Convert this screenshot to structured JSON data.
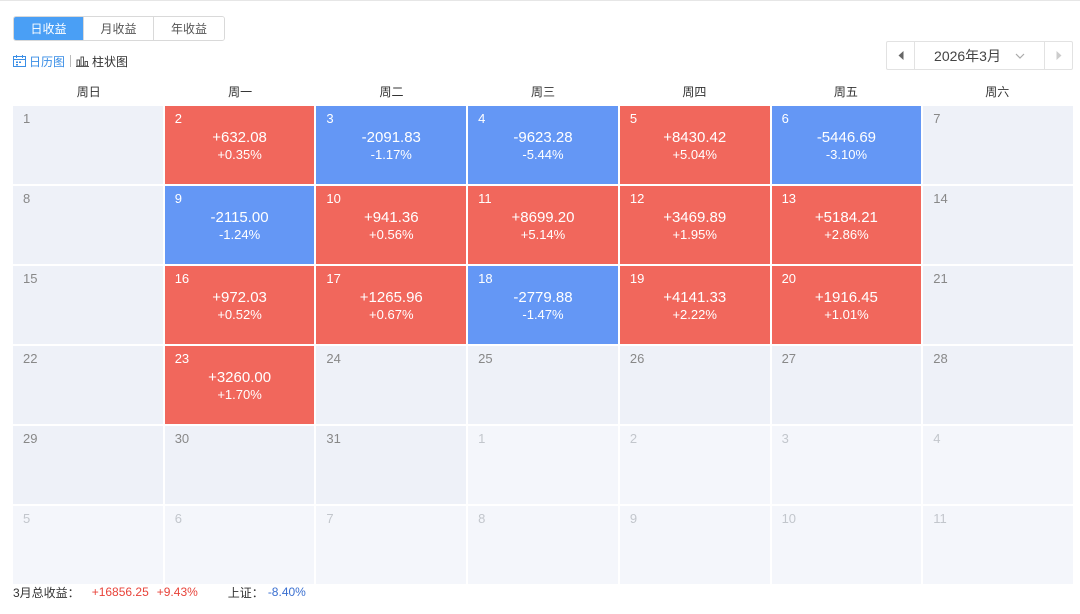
{
  "tabs": [
    {
      "label": "日收益",
      "active": true
    },
    {
      "label": "月收益",
      "active": false
    },
    {
      "label": "年收益",
      "active": false
    }
  ],
  "views": {
    "calendar_label": "日历图",
    "bar_label": "柱状图"
  },
  "month_nav": {
    "current": "2026年3月"
  },
  "weekdays": [
    "周日",
    "周一",
    "周二",
    "周三",
    "周四",
    "周五",
    "周六"
  ],
  "colors": {
    "up": "#f1675c",
    "down": "#6497f5",
    "accent": "#4a9ff5"
  },
  "weeks": [
    [
      {
        "day": "1"
      },
      {
        "day": "2",
        "amount": "+632.08",
        "pct": "+0.35%",
        "dir": "up"
      },
      {
        "day": "3",
        "amount": "-2091.83",
        "pct": "-1.17%",
        "dir": "down"
      },
      {
        "day": "4",
        "amount": "-9623.28",
        "pct": "-5.44%",
        "dir": "down"
      },
      {
        "day": "5",
        "amount": "+8430.42",
        "pct": "+5.04%",
        "dir": "up"
      },
      {
        "day": "6",
        "amount": "-5446.69",
        "pct": "-3.10%",
        "dir": "down"
      },
      {
        "day": "7"
      }
    ],
    [
      {
        "day": "8"
      },
      {
        "day": "9",
        "amount": "-2115.00",
        "pct": "-1.24%",
        "dir": "down"
      },
      {
        "day": "10",
        "amount": "+941.36",
        "pct": "+0.56%",
        "dir": "up"
      },
      {
        "day": "11",
        "amount": "+8699.20",
        "pct": "+5.14%",
        "dir": "up"
      },
      {
        "day": "12",
        "amount": "+3469.89",
        "pct": "+1.95%",
        "dir": "up"
      },
      {
        "day": "13",
        "amount": "+5184.21",
        "pct": "+2.86%",
        "dir": "up"
      },
      {
        "day": "14"
      }
    ],
    [
      {
        "day": "15"
      },
      {
        "day": "16",
        "amount": "+972.03",
        "pct": "+0.52%",
        "dir": "up"
      },
      {
        "day": "17",
        "amount": "+1265.96",
        "pct": "+0.67%",
        "dir": "up"
      },
      {
        "day": "18",
        "amount": "-2779.88",
        "pct": "-1.47%",
        "dir": "down"
      },
      {
        "day": "19",
        "amount": "+4141.33",
        "pct": "+2.22%",
        "dir": "up"
      },
      {
        "day": "20",
        "amount": "+1916.45",
        "pct": "+1.01%",
        "dir": "up"
      },
      {
        "day": "21"
      }
    ],
    [
      {
        "day": "22"
      },
      {
        "day": "23",
        "amount": "+3260.00",
        "pct": "+1.70%",
        "dir": "up"
      },
      {
        "day": "24"
      },
      {
        "day": "25"
      },
      {
        "day": "26"
      },
      {
        "day": "27"
      },
      {
        "day": "28"
      }
    ],
    [
      {
        "day": "29"
      },
      {
        "day": "30"
      },
      {
        "day": "31"
      },
      {
        "day": "1",
        "other": true
      },
      {
        "day": "2",
        "other": true
      },
      {
        "day": "3",
        "other": true
      },
      {
        "day": "4",
        "other": true
      }
    ],
    [
      {
        "day": "5",
        "other": true
      },
      {
        "day": "6",
        "other": true
      },
      {
        "day": "7",
        "other": true
      },
      {
        "day": "8",
        "other": true
      },
      {
        "day": "9",
        "other": true
      },
      {
        "day": "10",
        "other": true
      },
      {
        "day": "11",
        "other": true
      }
    ]
  ],
  "footer": {
    "total_label": "3月总收益：",
    "total_amount": "+16856.25",
    "total_pct": "+9.43%",
    "index_label": "上证：",
    "index_pct": "-8.40%"
  }
}
